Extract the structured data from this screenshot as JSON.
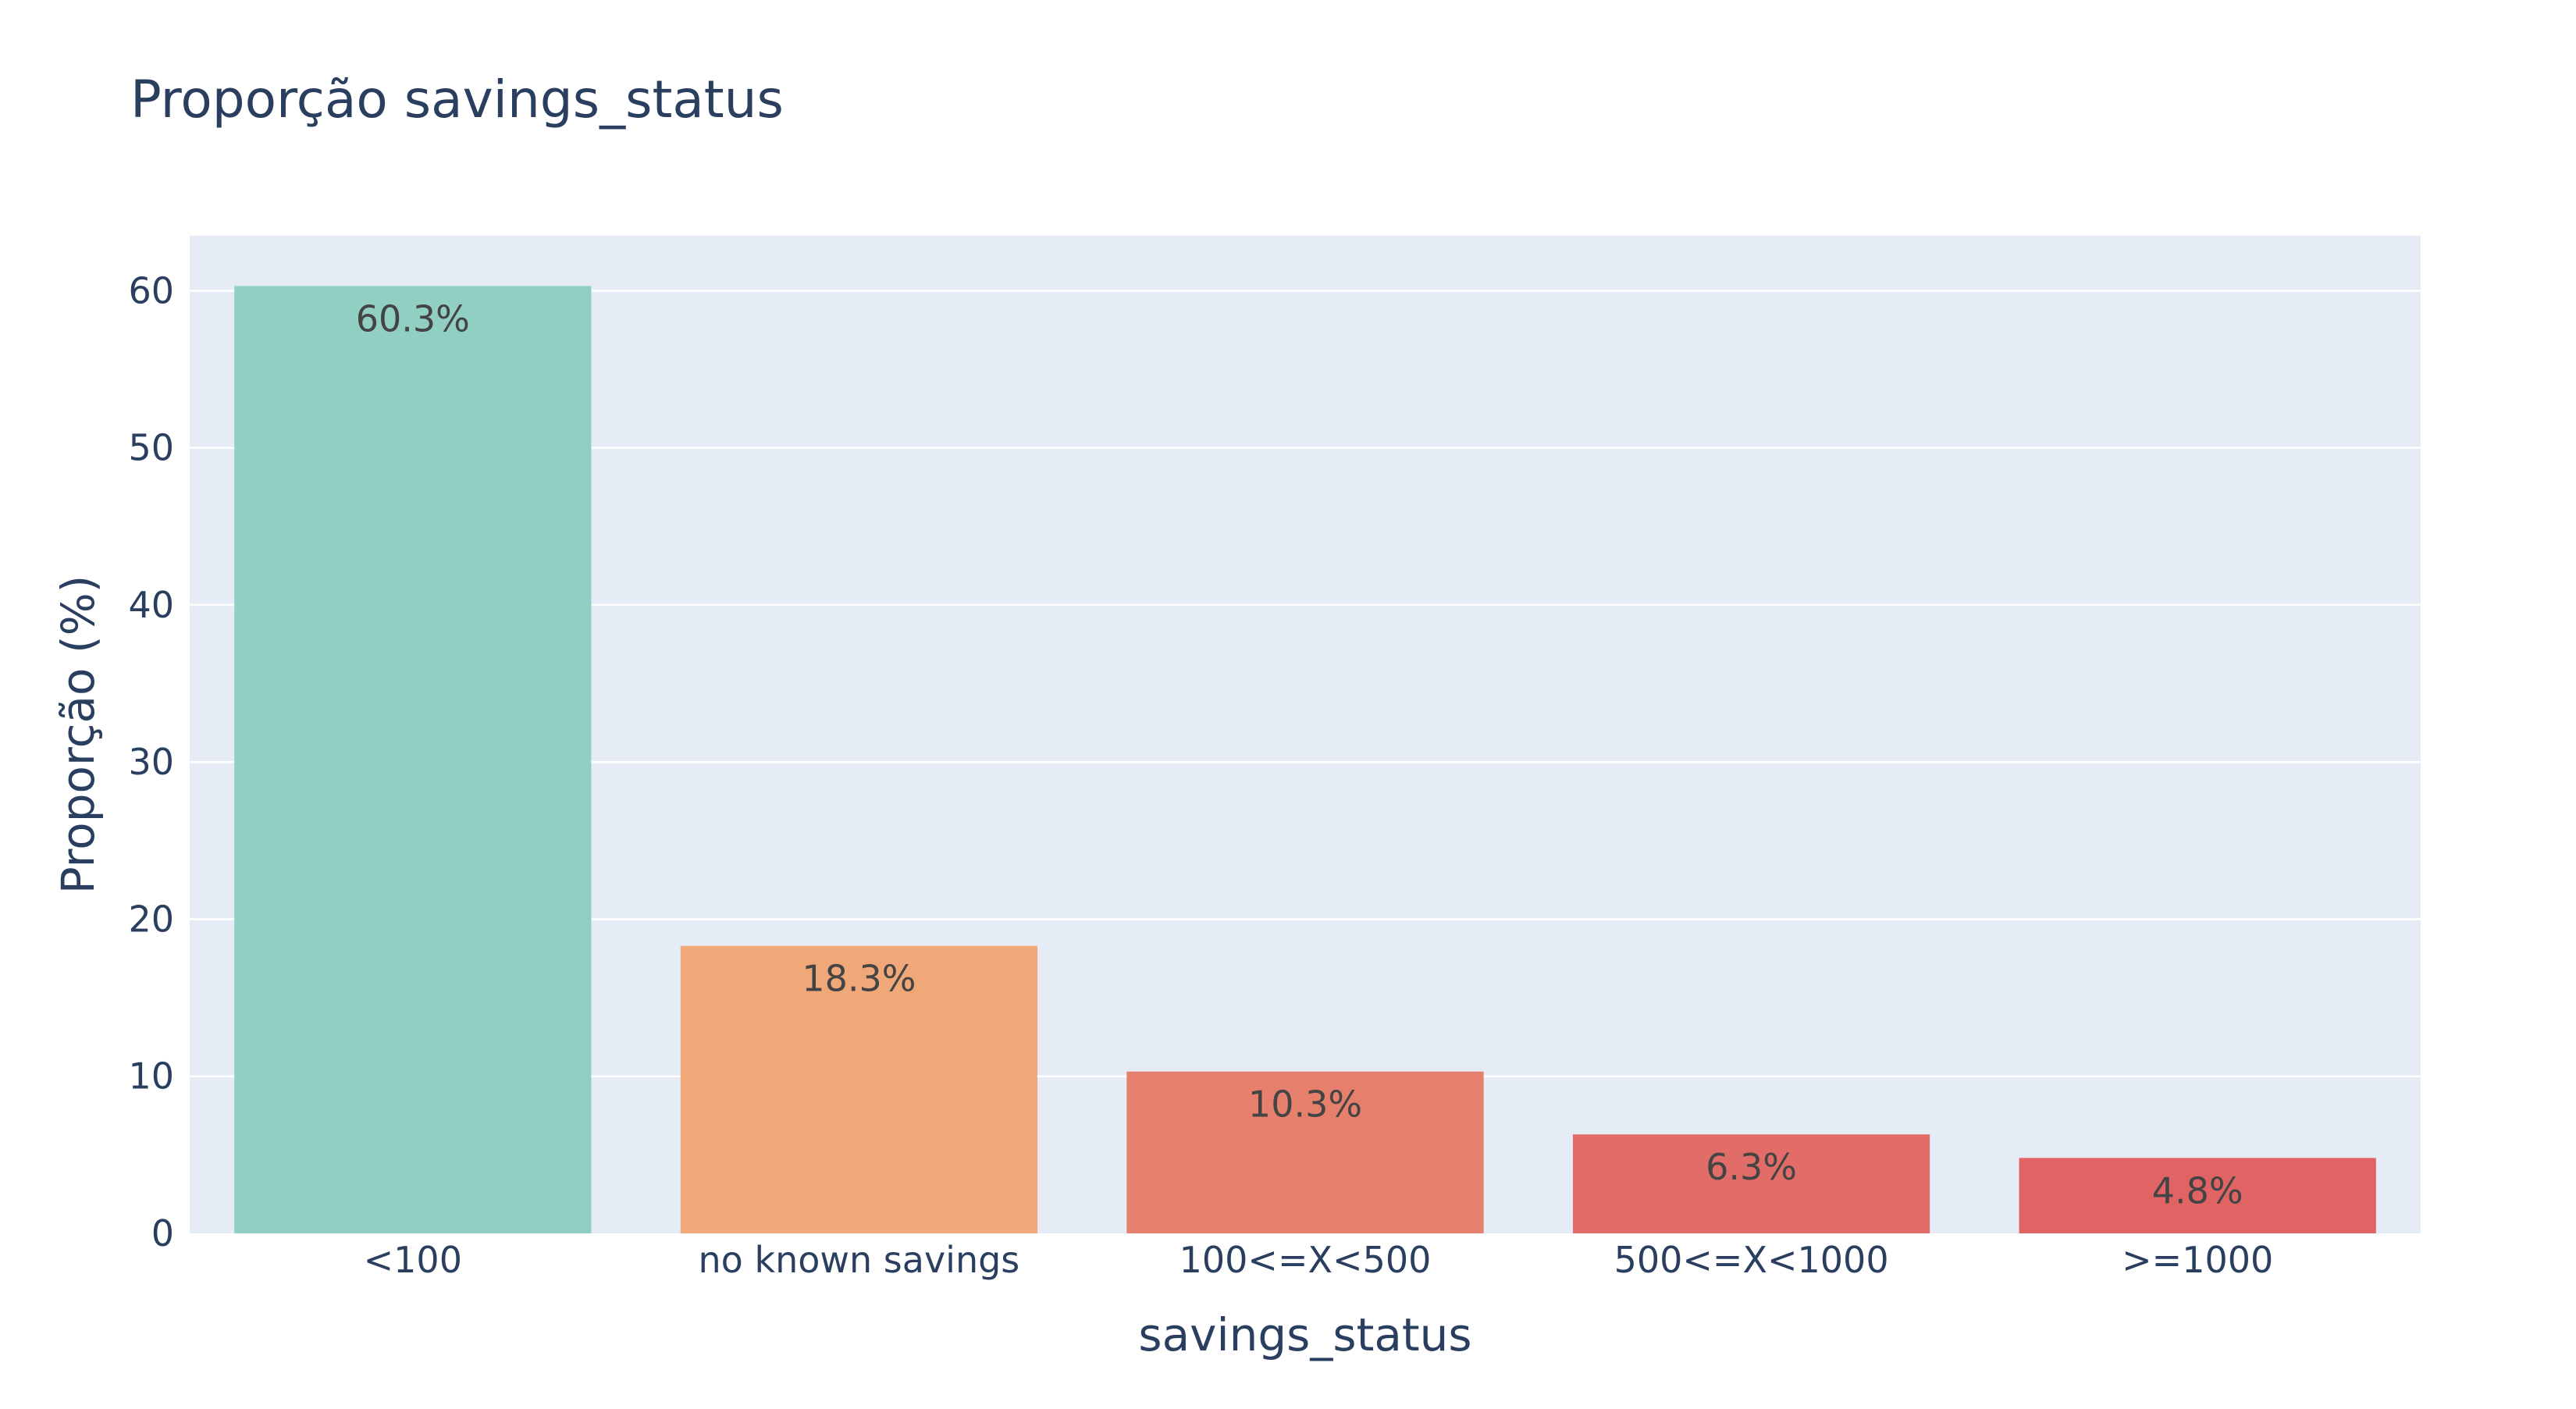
{
  "chart_data": {
    "type": "bar",
    "title": "Proporção savings_status",
    "xlabel": "savings_status",
    "ylabel": "Proporção (%)",
    "categories": [
      "<100",
      "no known savings",
      "100<=X<500",
      "500<=X<1000",
      ">=1000"
    ],
    "values": [
      60.3,
      18.3,
      10.3,
      6.3,
      4.8
    ],
    "text_labels": [
      "60.3%",
      "18.3%",
      "10.3%",
      "6.3%",
      "4.8%"
    ],
    "bar_colors": [
      "#91cfc2",
      "#f0a878",
      "#e6806c",
      "#e26c68",
      "#e06464"
    ],
    "ylim": [
      0,
      63.5
    ],
    "yticks": [
      0,
      10,
      20,
      30,
      40,
      50,
      60
    ],
    "grid": true,
    "plot_background": "#e5ecf6",
    "legend": "none"
  }
}
